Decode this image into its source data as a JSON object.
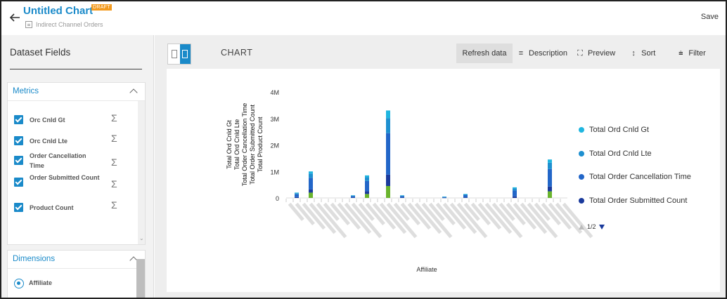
{
  "header": {
    "title": "Untitled Chart",
    "badge": "DRAFT",
    "subtitle": "Indirect Channel Orders",
    "save_label": "Save"
  },
  "left_panel": {
    "title": "Dataset Fields",
    "metrics": {
      "title": "Metrics",
      "items": [
        {
          "label": "Orc Cnld Gt",
          "checked": true
        },
        {
          "label": "Orc Cnld Lte",
          "checked": true
        },
        {
          "label": "Order Cancellation Time",
          "checked": true
        },
        {
          "label": "Order Submitted Count",
          "checked": true
        },
        {
          "label": "Product Count",
          "checked": true
        }
      ]
    },
    "dimensions": {
      "title": "Dimensions",
      "items": [
        {
          "label": "Affiliate",
          "selected": true
        }
      ]
    }
  },
  "main": {
    "tab": "CHART",
    "toolbar": {
      "refresh": "Refresh data",
      "description": "Description",
      "preview": "Preview",
      "sort": "Sort",
      "filter": "Filter"
    },
    "pager": "1/2"
  },
  "chart_data": {
    "type": "bar",
    "stacked": true,
    "xlabel": "Affiliate",
    "ylabel_lines": [
      "Total Ord Cnld Gt",
      "Total Ord Cnld Lte",
      "Total Order Cancellation Time",
      "Total Order Submitted Count",
      "Total Product Count"
    ],
    "y_ticks": [
      "0",
      "1M",
      "2M",
      "3M",
      "4M"
    ],
    "ylim": [
      0,
      4000000
    ],
    "legend": {
      "placement": "right",
      "page": "1/2"
    },
    "series": [
      {
        "name": "Total Ord Cnld Gt",
        "color": "#1fb6e0"
      },
      {
        "name": "Total Ord Cnld Lte",
        "color": "#1e90d0"
      },
      {
        "name": "Total Order Cancellation Time",
        "color": "#2266c8"
      },
      {
        "name": "Total Order Submitted Count",
        "color": "#1a3a9c"
      }
    ],
    "bar_totals": [
      0,
      200000,
      0,
      1000000,
      0,
      0,
      0,
      0,
      0,
      100000,
      0,
      850000,
      0,
      0,
      3300000,
      0,
      100000,
      0,
      0,
      0,
      0,
      0,
      50000,
      0,
      0,
      150000,
      0,
      0,
      0,
      0,
      0,
      0,
      400000,
      0,
      0,
      0,
      0,
      1450000,
      0,
      0
    ],
    "bar_green_values": [
      0,
      0,
      0,
      200000,
      0,
      0,
      0,
      0,
      0,
      0,
      0,
      150000,
      0,
      0,
      450000,
      0,
      0,
      0,
      0,
      0,
      0,
      0,
      0,
      0,
      0,
      0,
      0,
      0,
      0,
      0,
      0,
      0,
      0,
      0,
      0,
      0,
      0,
      250000,
      0,
      0
    ],
    "green_color": "#6ab42d"
  },
  "colors": {
    "accent": "#1a8ac9",
    "draft": "#f39a1d"
  }
}
